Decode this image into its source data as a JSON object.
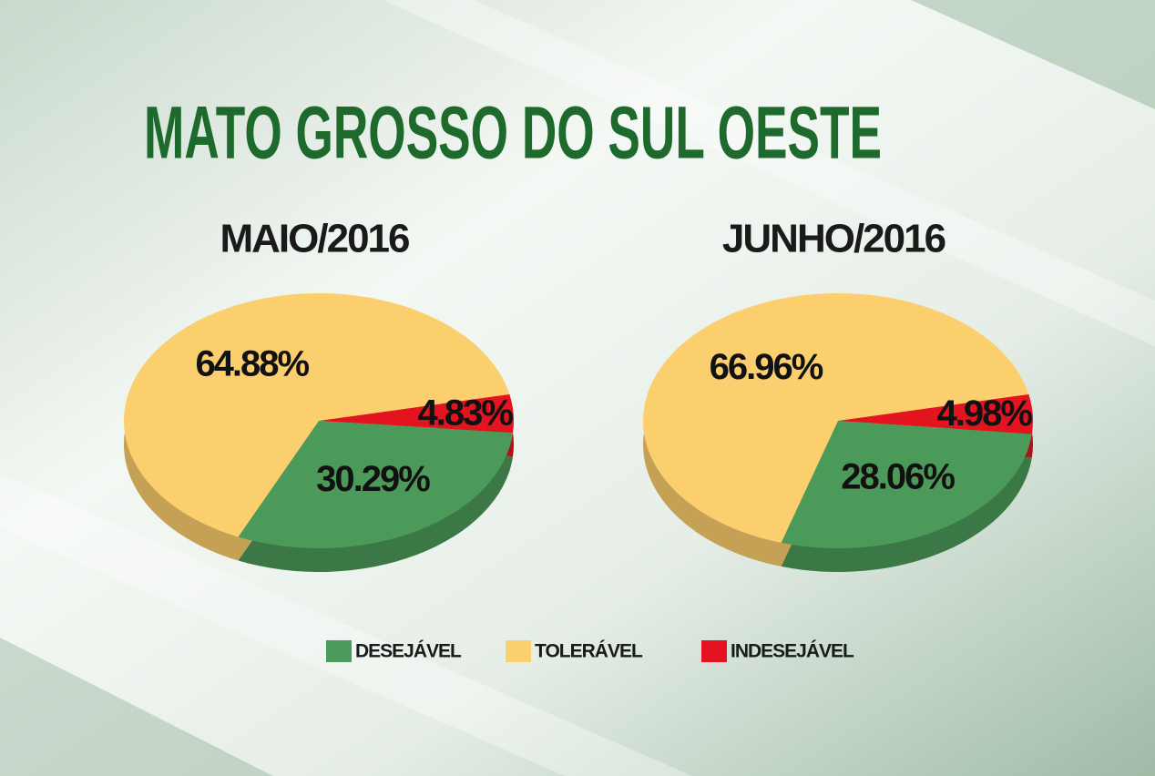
{
  "title": "MATO GROSSO DO SUL OESTE",
  "legend": {
    "categories": [
      "DESEJÁVEL",
      "TOLERÁVEL",
      "INDESEJÁVEL"
    ],
    "colors": [
      "#4c9a5a",
      "#fccf6e",
      "#e3141f"
    ]
  },
  "chart_data": [
    {
      "type": "pie",
      "subtitle": "MAIO/2016",
      "values": [
        30.29,
        64.88,
        4.83
      ],
      "value_labels": [
        "30.29%",
        "64.88%",
        "4.83%"
      ]
    },
    {
      "type": "pie",
      "subtitle": "JUNHO/2016",
      "values": [
        28.06,
        66.96,
        4.98
      ],
      "value_labels": [
        "28.06%",
        "66.96%",
        "4.98%"
      ]
    }
  ]
}
